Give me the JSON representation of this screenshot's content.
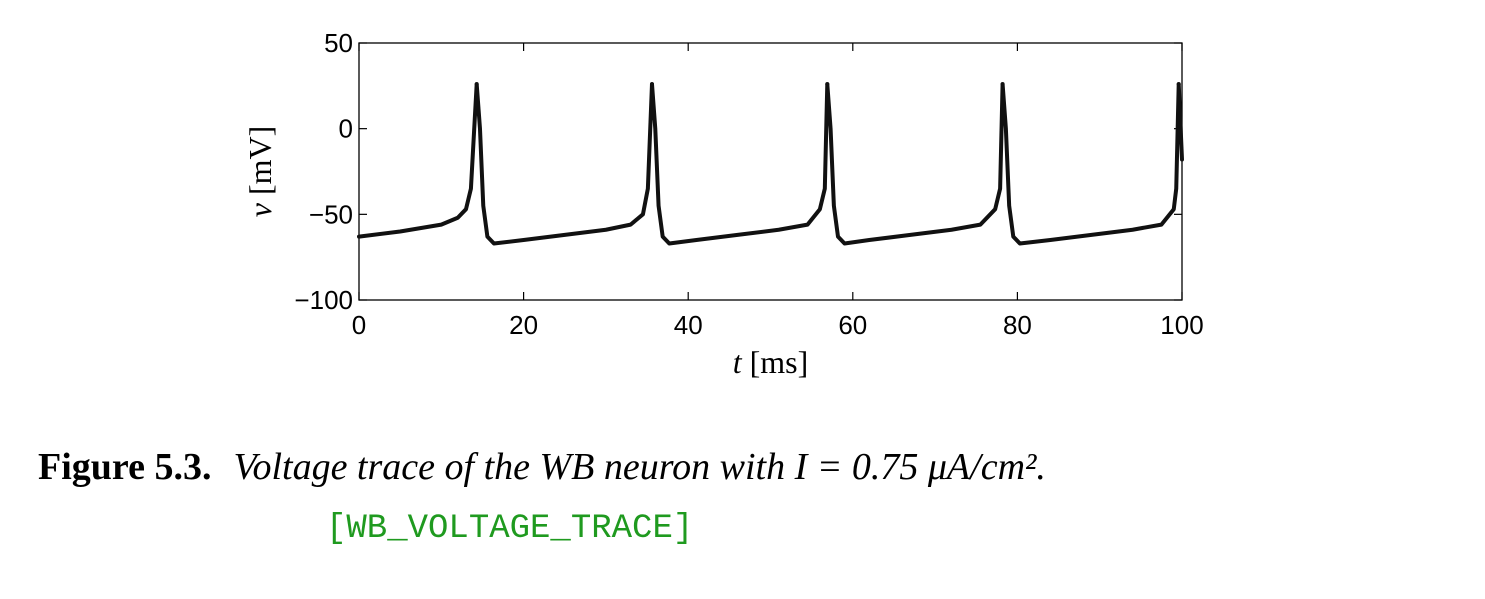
{
  "chart_data": {
    "type": "line",
    "xlabel_var": "t",
    "xlabel_unit": "[ms]",
    "ylabel_var": "v",
    "ylabel_unit": "[mV]",
    "xlim": [
      0,
      100
    ],
    "ylim": [
      -100,
      50
    ],
    "xticks": [
      0,
      20,
      40,
      60,
      80,
      100
    ],
    "xtick_labels": [
      "0",
      "20",
      "40",
      "60",
      "80",
      "100"
    ],
    "yticks": [
      -100,
      -50,
      0,
      50
    ],
    "ytick_labels": [
      "−100",
      "−50",
      "0",
      "50"
    ],
    "grid": false,
    "line_color": "#111111",
    "spike_times": [
      14.3,
      35.6,
      56.9,
      78.2,
      99.6
    ],
    "spike_peak": 26,
    "trough": -67,
    "initial_value": -63,
    "series": [
      {
        "x": [
          0,
          5,
          10,
          12,
          13,
          13.6,
          14.0,
          14.3,
          14.7,
          15.1,
          15.6,
          16.4,
          20,
          25,
          30,
          33,
          34.5,
          35.1,
          35.6,
          36.0,
          36.4,
          36.9,
          37.7,
          41,
          46,
          51,
          54.5,
          56,
          56.6,
          56.9,
          57.3,
          57.7,
          58.2,
          59.0,
          62,
          67,
          72,
          75.5,
          77.3,
          77.9,
          78.2,
          78.6,
          79.0,
          79.5,
          80.3,
          84,
          89,
          94,
          97.5,
          99.0,
          99.3,
          99.6,
          100
        ],
        "y": [
          -63,
          -60,
          -56,
          -52,
          -47,
          -35,
          0,
          26,
          0,
          -45,
          -63,
          -67,
          -65,
          -62,
          -59,
          -56,
          -50,
          -35,
          26,
          0,
          -45,
          -63,
          -67,
          -65,
          -62,
          -59,
          -56,
          -47,
          -35,
          26,
          0,
          -45,
          -63,
          -67,
          -65,
          -62,
          -59,
          -56,
          -47,
          -35,
          26,
          0,
          -45,
          -63,
          -67,
          -65,
          -62,
          -59,
          -56,
          -47,
          -35,
          26,
          -18
        ]
      }
    ]
  },
  "caption": {
    "label": "Figure 5.3.",
    "text": "Voltage trace of the WB neuron with I = 0.75 μA/cm².",
    "tag": "[WB_VOLTAGE_TRACE]"
  }
}
